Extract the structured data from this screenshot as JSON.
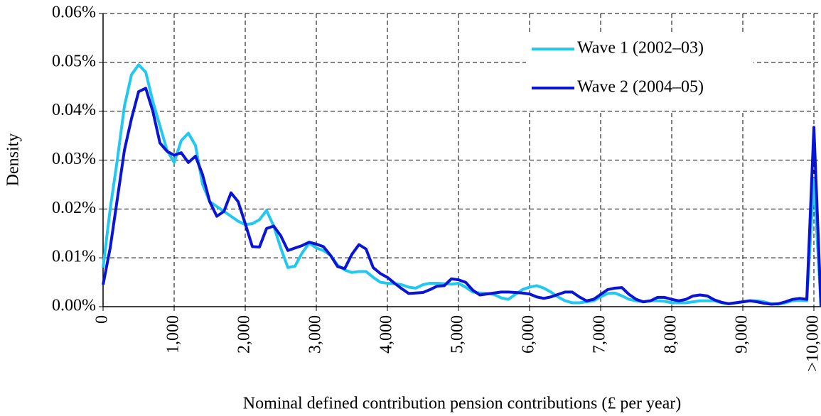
{
  "chart_data": {
    "type": "line",
    "x_label": "Nominal defined contribution pension contributions (£ per year)",
    "y_label": "Density",
    "x": [
      0,
      100,
      200,
      300,
      400,
      500,
      600,
      700,
      800,
      900,
      1000,
      1100,
      1200,
      1300,
      1400,
      1500,
      1600,
      1700,
      1800,
      1900,
      2000,
      2100,
      2200,
      2300,
      2400,
      2500,
      2600,
      2700,
      2800,
      2900,
      3000,
      3100,
      3200,
      3300,
      3400,
      3500,
      3600,
      3700,
      3800,
      3900,
      4000,
      4100,
      4200,
      4300,
      4400,
      4500,
      4600,
      4700,
      4800,
      4900,
      5000,
      5100,
      5200,
      5300,
      5400,
      5500,
      5600,
      5700,
      5800,
      5900,
      6000,
      6100,
      6200,
      6300,
      6400,
      6500,
      6600,
      6700,
      6800,
      6900,
      7000,
      7100,
      7200,
      7300,
      7400,
      7500,
      7600,
      7700,
      7800,
      7900,
      8000,
      8100,
      8200,
      8300,
      8400,
      8500,
      8600,
      8700,
      8800,
      8900,
      9000,
      9100,
      9200,
      9300,
      9400,
      9500,
      9600,
      9700,
      9800,
      9900,
      10000,
      10100
    ],
    "series": [
      {
        "name": "Wave 1 (2002–03)",
        "color": "#22c8f0",
        "values": [
          0.008,
          0.02,
          0.03,
          0.041,
          0.0475,
          0.0495,
          0.048,
          0.042,
          0.037,
          0.032,
          0.0295,
          0.034,
          0.0355,
          0.033,
          0.025,
          0.0215,
          0.0205,
          0.0195,
          0.0185,
          0.0175,
          0.0168,
          0.017,
          0.0178,
          0.0197,
          0.0165,
          0.012,
          0.008,
          0.0083,
          0.011,
          0.013,
          0.012,
          0.0115,
          0.0105,
          0.0085,
          0.0075,
          0.007,
          0.0072,
          0.0072,
          0.006,
          0.005,
          0.0048,
          0.0047,
          0.0045,
          0.004,
          0.0038,
          0.0045,
          0.0048,
          0.0048,
          0.0047,
          0.0046,
          0.0048,
          0.004,
          0.003,
          0.0028,
          0.0027,
          0.0025,
          0.0018,
          0.0015,
          0.0025,
          0.0035,
          0.004,
          0.0043,
          0.0038,
          0.003,
          0.002,
          0.0012,
          0.0008,
          0.0008,
          0.001,
          0.0012,
          0.002,
          0.0027,
          0.0028,
          0.0022,
          0.0015,
          0.0012,
          0.001,
          0.0012,
          0.0012,
          0.0011,
          0.0008,
          0.0008,
          0.0008,
          0.001,
          0.0012,
          0.0012,
          0.0012,
          0.0008,
          0.0006,
          0.0008,
          0.001,
          0.0012,
          0.0012,
          0.001,
          0.0006,
          0.0005,
          0.0008,
          0.0012,
          0.0013,
          0.0012,
          0.026,
          0
        ]
      },
      {
        "name": "Wave 2 (2004–05)",
        "color": "#0a14d4",
        "values": [
          0.0045,
          0.012,
          0.022,
          0.032,
          0.0385,
          0.044,
          0.0447,
          0.04,
          0.0335,
          0.0318,
          0.031,
          0.0315,
          0.0295,
          0.0308,
          0.027,
          0.0215,
          0.0185,
          0.0195,
          0.0233,
          0.0215,
          0.017,
          0.0123,
          0.0122,
          0.016,
          0.0165,
          0.0145,
          0.0115,
          0.012,
          0.0125,
          0.0132,
          0.0128,
          0.0123,
          0.0105,
          0.0082,
          0.0078,
          0.0107,
          0.0127,
          0.0118,
          0.008,
          0.0068,
          0.006,
          0.0048,
          0.0037,
          0.0027,
          0.0028,
          0.0029,
          0.0035,
          0.0042,
          0.0043,
          0.0057,
          0.0055,
          0.005,
          0.0034,
          0.0024,
          0.0026,
          0.0028,
          0.003,
          0.003,
          0.0029,
          0.0028,
          0.0026,
          0.002,
          0.0017,
          0.002,
          0.0025,
          0.003,
          0.003,
          0.002,
          0.0012,
          0.0015,
          0.0025,
          0.0035,
          0.0038,
          0.0039,
          0.0025,
          0.0015,
          0.001,
          0.0012,
          0.0019,
          0.0019,
          0.0015,
          0.0012,
          0.0015,
          0.0022,
          0.0024,
          0.0022,
          0.0014,
          0.0009,
          0.0006,
          0.0008,
          0.001,
          0.0012,
          0.001,
          0.0007,
          0.0005,
          0.0006,
          0.001,
          0.0015,
          0.0017,
          0.0015,
          0.0367,
          0
        ]
      }
    ],
    "xlim": [
      0,
      10100
    ],
    "ylim": [
      0,
      0.06
    ],
    "xticks": [
      0,
      {
        "value": 1000,
        "label": "1,000"
      },
      {
        "value": 2000,
        "label": "2,000"
      },
      {
        "value": 3000,
        "label": "3,000"
      },
      {
        "value": 4000,
        "label": "4,000"
      },
      {
        "value": 5000,
        "label": "5,000"
      },
      {
        "value": 6000,
        "label": "6,000"
      },
      {
        "value": 7000,
        "label": "7,000"
      },
      {
        "value": 8000,
        "label": "8,000"
      },
      {
        "value": 9000,
        "label": "9,000"
      },
      {
        "value": 10000,
        "label": ">10,000"
      }
    ],
    "yticks": [
      {
        "value": 0,
        "label": "0.00%"
      },
      {
        "value": 0.01,
        "label": "0.01%"
      },
      {
        "value": 0.02,
        "label": "0.02%"
      },
      {
        "value": 0.03,
        "label": "0.03%"
      },
      {
        "value": 0.04,
        "label": "0.04%"
      },
      {
        "value": 0.05,
        "label": "0.05%"
      },
      {
        "value": 0.06,
        "label": "0.06%"
      }
    ],
    "grid": true,
    "legend": "upper right"
  }
}
